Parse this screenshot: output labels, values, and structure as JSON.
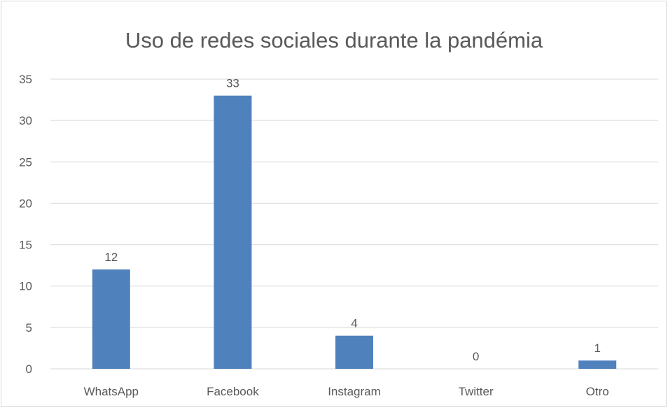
{
  "chart_data": {
    "type": "bar",
    "title": "Uso de redes sociales durante la pandémia",
    "categories": [
      "WhatsApp",
      "Facebook",
      "Instagram",
      "Twitter",
      "Otro"
    ],
    "values": [
      12,
      33,
      4,
      0,
      1
    ],
    "data_labels": [
      "12",
      "33",
      "4",
      "0",
      "1"
    ],
    "ylim": [
      0,
      35
    ],
    "yticks": [
      0,
      5,
      10,
      15,
      20,
      25,
      30,
      35
    ],
    "ytick_labels": [
      "0",
      "5",
      "10",
      "15",
      "20",
      "25",
      "30",
      "35"
    ],
    "grid": true,
    "legend": "none",
    "colors": {
      "bar": "#4f81bd",
      "grid": "#d9d9d9",
      "text": "#595959"
    }
  }
}
